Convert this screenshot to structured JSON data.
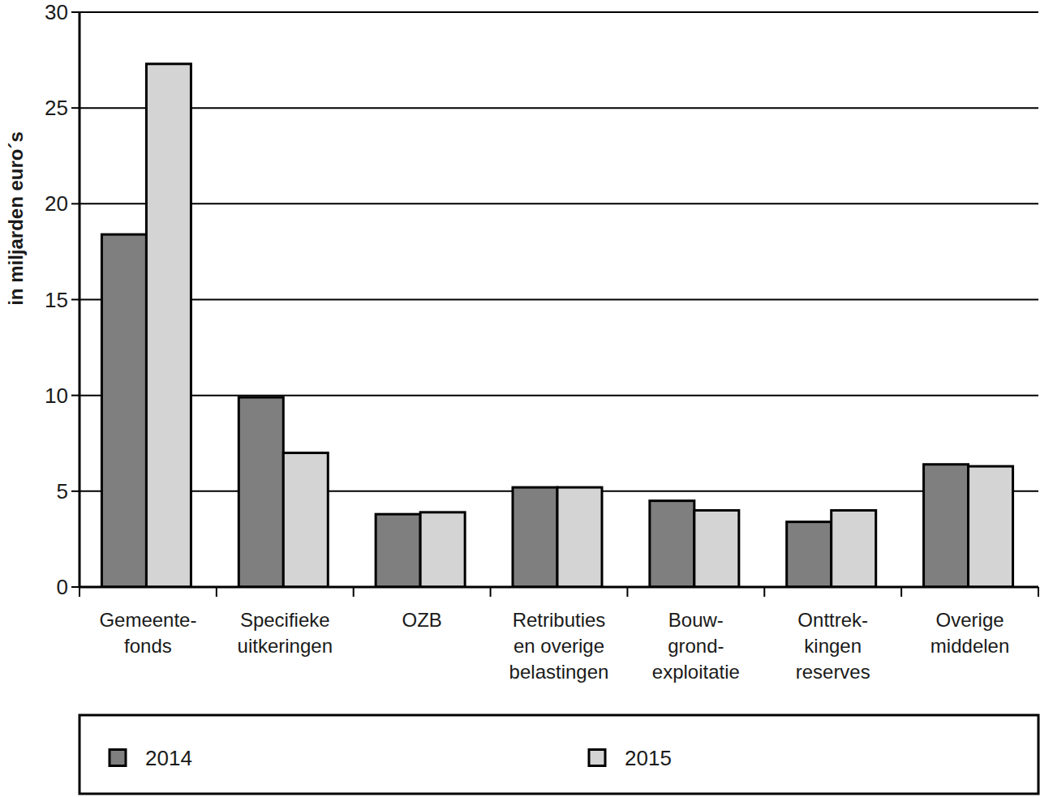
{
  "chart_data": {
    "type": "bar",
    "y_label": "in miljarden euro´s",
    "categories": [
      "Gemeente-\nfonds",
      "Specifieke\nuitkeringen",
      "OZB",
      "Retributies\nen overige\nbelastingen",
      "Bouw-\ngrond-\nexploitatie",
      "Onttrek-\nkingen\nreserves",
      "Overige\nmiddelen"
    ],
    "series": [
      {
        "name": "2014",
        "color": "#7f7f7f",
        "values": [
          18.4,
          9.9,
          3.8,
          5.2,
          4.5,
          3.4,
          6.4
        ]
      },
      {
        "name": "2015",
        "color": "#d4d4d4",
        "values": [
          27.3,
          7.0,
          3.9,
          5.2,
          4.0,
          4.0,
          6.3
        ]
      }
    ],
    "ylim": [
      0,
      30
    ],
    "yticks": [
      0,
      5,
      10,
      15,
      20,
      25,
      30
    ],
    "grid": true,
    "legend": "bottom"
  }
}
